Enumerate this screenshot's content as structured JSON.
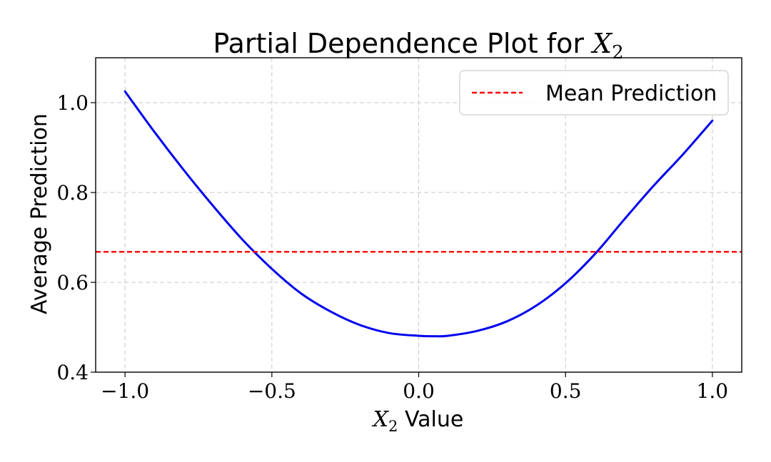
{
  "chart_data": {
    "type": "line",
    "title": "Partial Dependence Plot for X2",
    "title_prefix": "Partial Dependence Plot for ",
    "title_math": "X",
    "title_math_sub": "2",
    "xlabel": "X2 Value",
    "xlabel_math": "X",
    "xlabel_math_sub": "2",
    "xlabel_suffix": " Value",
    "ylabel": "Average Prediction",
    "xlim": [
      -1.1,
      1.1
    ],
    "ylim": [
      0.4,
      1.1
    ],
    "xticks": [
      -1.0,
      -0.5,
      0.0,
      0.5,
      1.0
    ],
    "xtick_labels": [
      "−1.0",
      "−0.5",
      "0.0",
      "0.5",
      "1.0"
    ],
    "yticks": [
      0.4,
      0.6,
      0.8,
      1.0
    ],
    "ytick_labels": [
      "0.4",
      "0.6",
      "0.8",
      "1.0"
    ],
    "grid": true,
    "legend_position": "top-right",
    "series": [
      {
        "kind": "curve",
        "color": "#0000ee",
        "x": [
          -1.0,
          -0.9,
          -0.8,
          -0.7,
          -0.6,
          -0.5,
          -0.4,
          -0.3,
          -0.2,
          -0.1,
          0.0,
          0.05,
          0.1,
          0.2,
          0.3,
          0.4,
          0.5,
          0.6,
          0.7,
          0.8,
          0.9,
          1.0
        ],
        "y": [
          1.025,
          0.935,
          0.85,
          0.77,
          0.695,
          0.63,
          0.575,
          0.535,
          0.505,
          0.487,
          0.481,
          0.48,
          0.481,
          0.492,
          0.513,
          0.548,
          0.598,
          0.663,
          0.74,
          0.815,
          0.885,
          0.96
        ]
      },
      {
        "kind": "hline",
        "name": "Mean Prediction",
        "color": "#ff0000",
        "y": 0.668
      }
    ]
  }
}
